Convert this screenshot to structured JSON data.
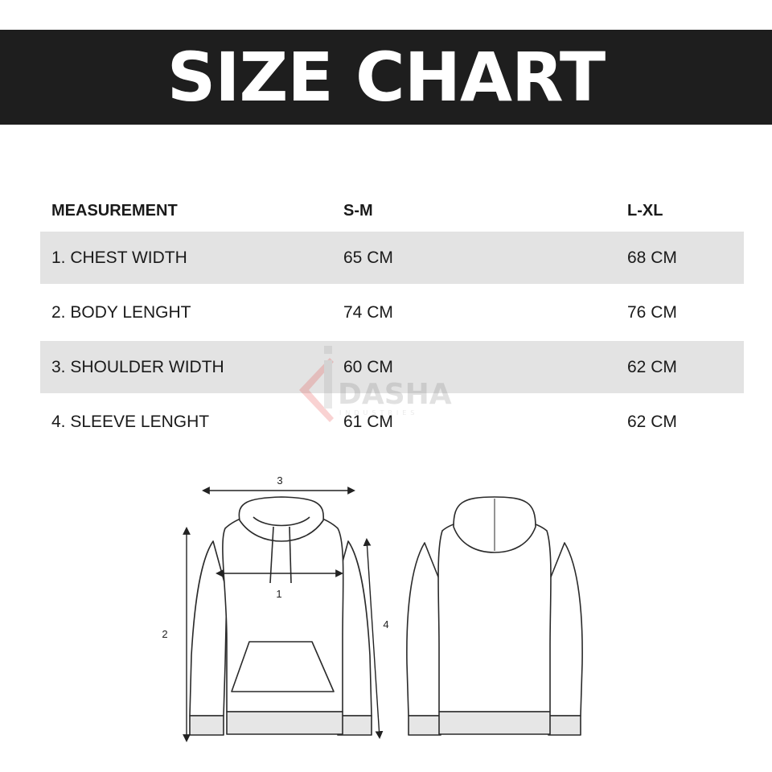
{
  "banner": {
    "title": "SIZE CHART"
  },
  "table": {
    "headers": [
      "MEASUREMENT",
      "S-M",
      "L-XL"
    ],
    "rows": [
      {
        "measurement": "1. CHEST WIDTH",
        "sm": "65 CM",
        "lxl": "68 CM"
      },
      {
        "measurement": "2. BODY LENGHT",
        "sm": "74 CM",
        "lxl": "76 CM"
      },
      {
        "measurement": "3. SHOULDER WIDTH",
        "sm": "60 CM",
        "lxl": "62 CM"
      },
      {
        "measurement": "4. SLEEVE LENGHT",
        "sm": "61 CM",
        "lxl": "62 CM"
      }
    ]
  },
  "watermark": {
    "brand": "DASHA",
    "tagline": "INDUSTRIES"
  },
  "figure": {
    "labels": {
      "chest": "1",
      "body_length": "2",
      "shoulder": "3",
      "sleeve": "4"
    }
  },
  "colors": {
    "banner": "#1e1e1e",
    "row_shade": "#e3e3e3",
    "accent_watermark": "#e53935"
  }
}
